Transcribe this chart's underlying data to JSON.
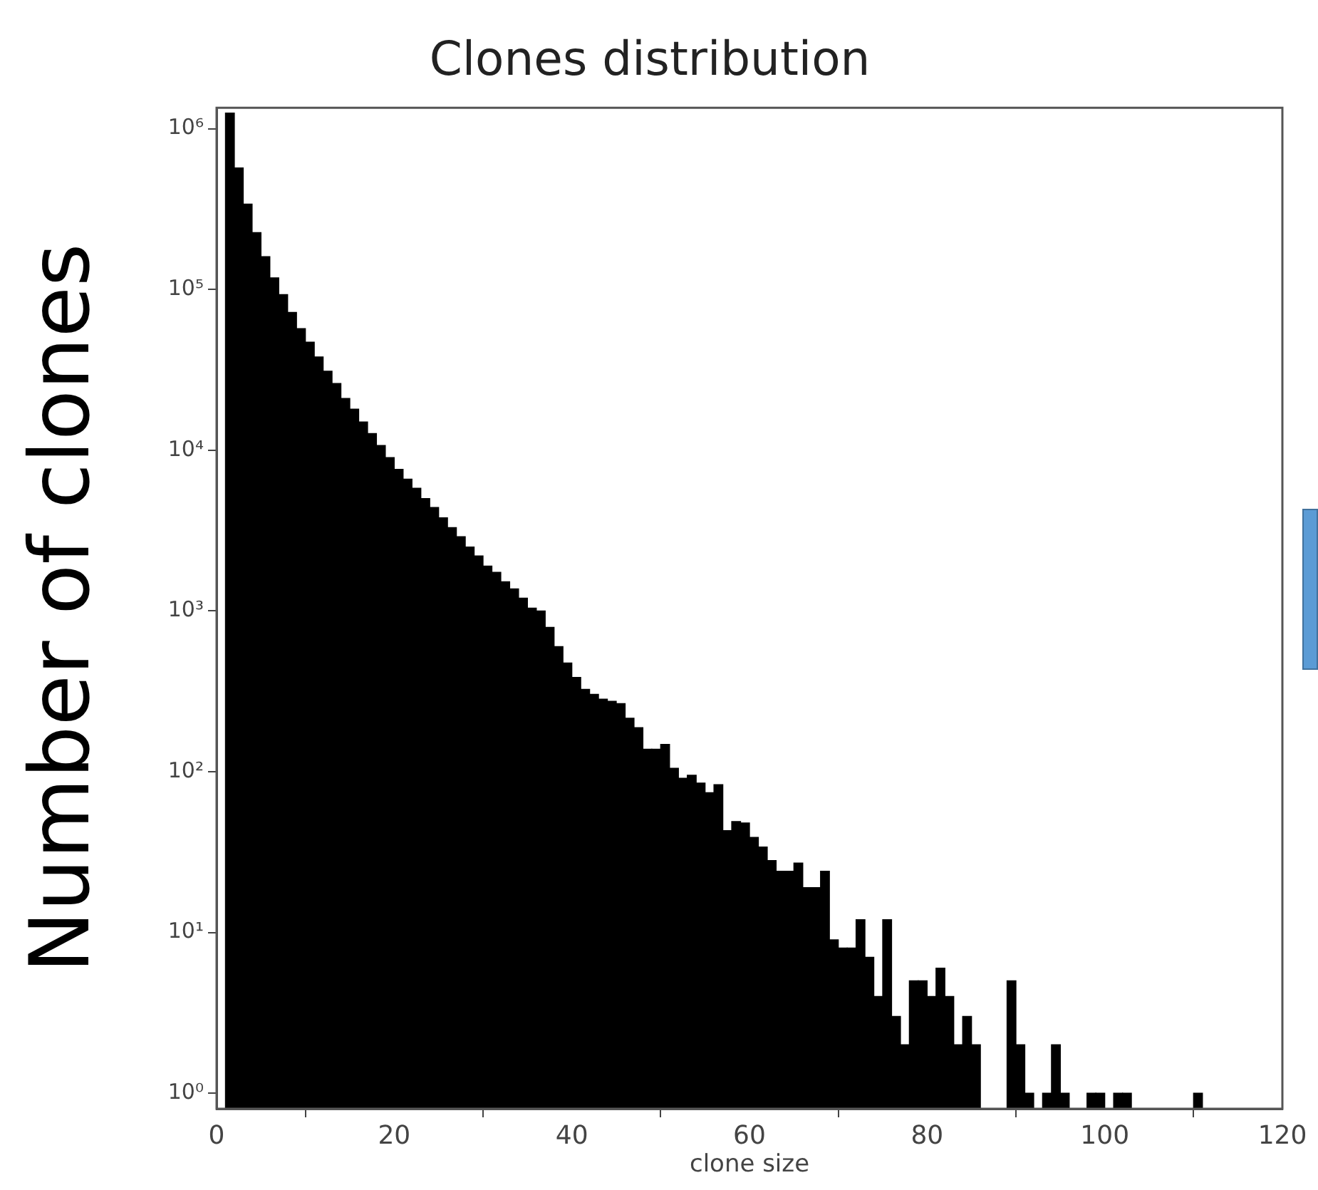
{
  "chart_data": {
    "type": "histogram",
    "title": "Clones distribution",
    "xlabel": "clone size",
    "ylabel": "Number of clones",
    "bins": [
      1,
      2,
      3,
      4,
      5,
      6,
      7,
      8,
      9,
      10,
      11,
      12,
      13,
      14,
      15,
      16,
      17,
      18,
      19,
      20,
      21,
      22,
      23,
      24,
      25,
      26,
      27,
      28,
      29,
      30,
      31,
      32,
      33,
      34,
      35,
      36,
      37,
      38,
      39,
      40,
      41,
      42,
      43,
      44,
      45,
      46,
      47,
      48,
      49,
      50,
      51,
      52,
      53,
      54,
      55,
      56,
      57,
      58,
      59,
      60,
      61,
      62,
      63,
      64,
      65,
      66,
      67,
      68,
      69,
      70,
      71,
      72,
      73,
      74,
      75,
      76,
      77,
      78,
      79,
      80,
      81,
      82,
      83,
      84,
      85,
      86,
      87,
      88,
      89,
      90,
      91,
      92,
      93,
      94,
      95,
      96,
      97,
      98,
      99,
      100,
      101,
      102,
      103,
      104,
      105,
      106,
      107,
      108,
      109,
      110,
      111
    ],
    "values": [
      1250000,
      570000,
      340000,
      226000,
      160000,
      118000,
      93000,
      72000,
      57000,
      47000,
      38000,
      31000,
      26000,
      21000,
      18000,
      15000,
      12700,
      10700,
      9000,
      7600,
      6600,
      5800,
      5000,
      4400,
      3800,
      3300,
      2900,
      2500,
      2200,
      1900,
      1740,
      1520,
      1370,
      1200,
      1040,
      1000,
      790,
      600,
      475,
      386,
      325,
      303,
      283,
      274,
      265,
      215,
      188,
      138,
      138,
      148,
      105,
      91,
      95,
      85,
      74,
      83,
      43,
      49,
      48,
      39,
      34,
      28,
      24,
      24,
      27,
      19,
      19,
      24,
      9,
      8,
      8,
      12,
      7,
      4,
      12,
      3,
      2,
      5,
      5,
      4,
      6,
      4,
      2,
      3,
      2,
      null,
      null,
      null,
      5,
      2,
      1,
      null,
      1,
      2,
      1,
      null,
      null,
      1,
      1,
      null,
      1,
      1,
      null,
      null,
      null,
      null,
      null,
      null,
      null,
      1
    ],
    "color": "#000000",
    "log": "y",
    "grid": false,
    "xlim": [
      0,
      120
    ],
    "xticks": [
      0,
      20,
      40,
      60,
      80,
      100,
      120
    ],
    "ylim": [
      0.8,
      1350000
    ],
    "yticks": [
      {
        "value": 1,
        "label": "10⁰"
      },
      {
        "value": 10,
        "label": "10¹"
      },
      {
        "value": 100,
        "label": "10²"
      },
      {
        "value": 1000,
        "label": "10³"
      },
      {
        "value": 10000,
        "label": "10⁴"
      },
      {
        "value": 100000,
        "label": "10⁵"
      },
      {
        "value": 1000000,
        "label": "10⁶"
      }
    ]
  }
}
